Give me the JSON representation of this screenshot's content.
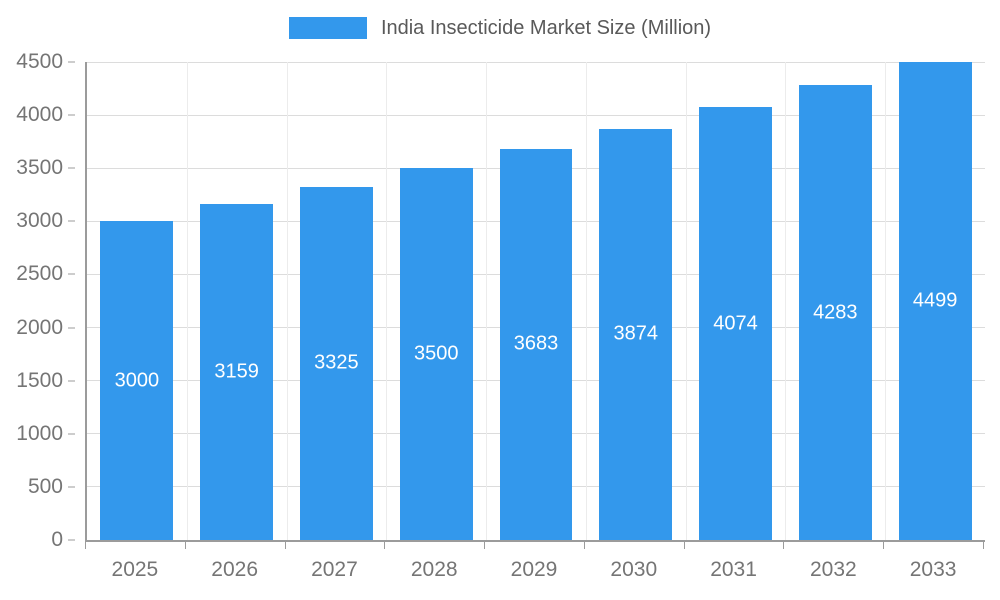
{
  "chart_data": {
    "type": "bar",
    "title": "India Insecticide Market Size (Million)",
    "categories": [
      "2025",
      "2026",
      "2027",
      "2028",
      "2029",
      "2030",
      "2031",
      "2032",
      "2033"
    ],
    "values": [
      3000,
      3159,
      3325,
      3500,
      3683,
      3874,
      4074,
      4283,
      4499
    ],
    "xlabel": "",
    "ylabel": "",
    "ylim": [
      0,
      4500
    ],
    "ytick_step": 500,
    "grid": "on",
    "legend_position": "top",
    "bar_color": "#3398EC",
    "value_label_color": "#ffffff",
    "axis_text_color": "#757575",
    "legend_text_color": "#595959"
  }
}
